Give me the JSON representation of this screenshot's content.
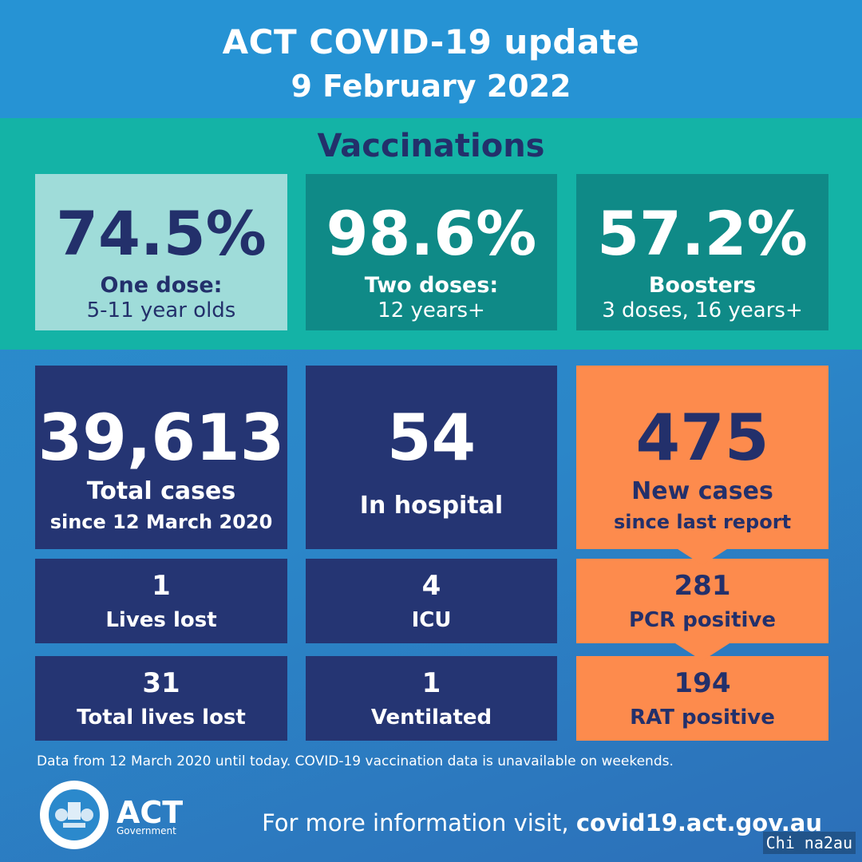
{
  "header": {
    "title": "ACT COVID-19 update",
    "date": "9 February 2022"
  },
  "vaccinations": {
    "title": "Vaccinations",
    "cards": [
      {
        "value": "74.5%",
        "label": "One dose:",
        "sub": "5-11 year olds"
      },
      {
        "value": "98.6%",
        "label": "Two doses:",
        "sub": "12 years+"
      },
      {
        "value": "57.2%",
        "label": "Boosters",
        "sub": "3 doses, 16 years+"
      }
    ]
  },
  "stats": {
    "total_cases": {
      "value": "39,613",
      "label": "Total cases",
      "sub": "since 12 March 2020"
    },
    "in_hospital": {
      "value": "54",
      "label": "In hospital"
    },
    "new_cases": {
      "value": "475",
      "label": "New cases",
      "sub": "since last report"
    },
    "lives_lost": {
      "value": "1",
      "label": "Lives lost"
    },
    "icu": {
      "value": "4",
      "label": "ICU"
    },
    "pcr_positive": {
      "value": "281",
      "label": "PCR positive"
    },
    "total_lives_lost": {
      "value": "31",
      "label": "Total lives lost"
    },
    "ventilated": {
      "value": "1",
      "label": "Ventilated"
    },
    "rat_positive": {
      "value": "194",
      "label": "RAT positive"
    }
  },
  "footer": {
    "note": "Data from 12 March 2020 until today.  COVID-19 vaccination data is unavailable on weekends.",
    "logo_word": "ACT",
    "logo_sub": "Government",
    "more_info_prefix": "For more information visit, ",
    "more_info_link": "covid19.act.gov.au",
    "watermark": "Chi na2au"
  },
  "colors": {
    "header_blue": "#2693d4",
    "teal_band": "#14b3a6",
    "light_teal": "#9fdcd9",
    "dark_teal": "#0f8a87",
    "navy": "#253573",
    "orange": "#fd8b4d"
  }
}
